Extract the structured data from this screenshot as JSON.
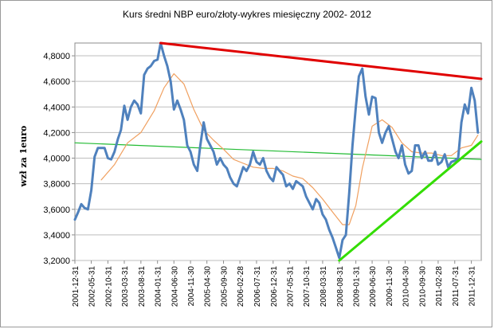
{
  "chart_data": {
    "type": "line",
    "title": "Kurs średni NBP euro/złoty-wykres  miesięczny 2002- 2012",
    "ylabel": "wzł za 1euro",
    "ylim": [
      3.2,
      4.9
    ],
    "y_ticks": [
      "3,2000",
      "3,4000",
      "3,6000",
      "3,8000",
      "4,0000",
      "4,2000",
      "4,4000",
      "4,6000",
      "4,8000"
    ],
    "y_tick_values": [
      3.2,
      3.4,
      3.6,
      3.8,
      4.0,
      4.2,
      4.4,
      4.6,
      4.8
    ],
    "x_range": [
      "2001-12-31",
      "2012-03-31"
    ],
    "x_ticks": [
      "2001-12-31",
      "2002-05-31",
      "2002-10-31",
      "2003-03-31",
      "2003-08-31",
      "2004-01-31",
      "2004-06-30",
      "2004-11-30",
      "2005-04-30",
      "2005-09-30",
      "2006-02-28",
      "2006-07-31",
      "2006-12-31",
      "2007-05-31",
      "2007-10-31",
      "2008-03-31",
      "2008-08-31",
      "2009-01-31",
      "2009-06-30",
      "2009-11-30",
      "2010-04-30",
      "2010-09-30",
      "2011-02-28",
      "2011-07-31",
      "2011-12-31"
    ],
    "grid": true,
    "colors": {
      "rate": "#4f81bd",
      "moving_average": "#f0a060",
      "resistance": "#e00000",
      "support": "#33dd00",
      "long_trend": "#22bb33",
      "grid": "#bdbdbd"
    },
    "series": [
      {
        "type": "line",
        "x": [
          "2001-12-31",
          "2002-01-31",
          "2002-02-28",
          "2002-03-31",
          "2002-04-30",
          "2002-05-31",
          "2002-06-30",
          "2002-07-31",
          "2002-08-31",
          "2002-09-30",
          "2002-10-31",
          "2002-11-30",
          "2002-12-31",
          "2003-01-31",
          "2003-02-28",
          "2003-03-31",
          "2003-04-30",
          "2003-05-31",
          "2003-06-30",
          "2003-07-31",
          "2003-08-31",
          "2003-09-30",
          "2003-10-31",
          "2003-11-30",
          "2003-12-31",
          "2004-01-31",
          "2004-02-29",
          "2004-03-31",
          "2004-04-30",
          "2004-05-31",
          "2004-06-30",
          "2004-07-31",
          "2004-08-31",
          "2004-09-30",
          "2004-10-31",
          "2004-11-30",
          "2004-12-31",
          "2005-01-31",
          "2005-02-28",
          "2005-03-31",
          "2005-04-30",
          "2005-05-31",
          "2005-06-30",
          "2005-07-31",
          "2005-08-31",
          "2005-09-30",
          "2005-10-31",
          "2005-11-30",
          "2005-12-31",
          "2006-01-31",
          "2006-02-28",
          "2006-03-31",
          "2006-04-30",
          "2006-05-31",
          "2006-06-30",
          "2006-07-31",
          "2006-08-31",
          "2006-09-30",
          "2006-10-31",
          "2006-11-30",
          "2006-12-31",
          "2007-01-31",
          "2007-02-28",
          "2007-03-31",
          "2007-04-30",
          "2007-05-31",
          "2007-06-30",
          "2007-07-31",
          "2007-08-31",
          "2007-09-30",
          "2007-10-31",
          "2007-11-30",
          "2007-12-31",
          "2008-01-31",
          "2008-02-29",
          "2008-03-31",
          "2008-04-30",
          "2008-05-31",
          "2008-06-30",
          "2008-07-31",
          "2008-08-31",
          "2008-09-30",
          "2008-10-31",
          "2008-11-30",
          "2008-12-31",
          "2009-01-31",
          "2009-02-28",
          "2009-03-31",
          "2009-04-30",
          "2009-05-31",
          "2009-06-30",
          "2009-07-31",
          "2009-08-31",
          "2009-09-30",
          "2009-10-31",
          "2009-11-30",
          "2009-12-31",
          "2010-01-31",
          "2010-02-28",
          "2010-03-31",
          "2010-04-30",
          "2010-05-31",
          "2010-06-30",
          "2010-07-31",
          "2010-08-31",
          "2010-09-30",
          "2010-10-31",
          "2010-11-30",
          "2010-12-31",
          "2011-01-31",
          "2011-02-28",
          "2011-03-31",
          "2011-04-30",
          "2011-05-31",
          "2011-06-30",
          "2011-07-31",
          "2011-08-31",
          "2011-09-30",
          "2011-10-31",
          "2011-11-30",
          "2011-12-31",
          "2012-01-31",
          "2012-02-29"
        ],
        "y": [
          3.52,
          3.58,
          3.64,
          3.61,
          3.6,
          3.75,
          4.01,
          4.08,
          4.08,
          4.08,
          4.0,
          3.99,
          4.05,
          4.15,
          4.22,
          4.41,
          4.3,
          4.4,
          4.45,
          4.42,
          4.35,
          4.65,
          4.7,
          4.72,
          4.76,
          4.77,
          4.9,
          4.8,
          4.72,
          4.6,
          4.38,
          4.45,
          4.38,
          4.3,
          4.1,
          4.05,
          3.95,
          3.9,
          4.1,
          4.28,
          4.15,
          4.1,
          4.05,
          3.95,
          4.0,
          3.95,
          3.92,
          3.85,
          3.8,
          3.78,
          3.85,
          3.93,
          3.9,
          3.95,
          4.05,
          3.97,
          3.95,
          4.0,
          3.9,
          3.85,
          3.82,
          3.93,
          3.9,
          3.87,
          3.78,
          3.8,
          3.76,
          3.82,
          3.8,
          3.78,
          3.7,
          3.65,
          3.6,
          3.68,
          3.65,
          3.56,
          3.52,
          3.44,
          3.38,
          3.3,
          3.22,
          3.36,
          3.4,
          3.72,
          4.1,
          4.4,
          4.64,
          4.7,
          4.48,
          4.34,
          4.48,
          4.47,
          4.2,
          4.12,
          4.2,
          4.25,
          4.15,
          4.05,
          4.0,
          4.1,
          3.95,
          3.88,
          3.9,
          4.1,
          4.1,
          4.0,
          4.05,
          3.98,
          3.98,
          4.05,
          3.95,
          3.97,
          4.03,
          3.93,
          3.97,
          3.98,
          4.0,
          4.28,
          4.42,
          4.35,
          4.55,
          4.45,
          4.2
        ]
      },
      {
        "type": "line",
        "x": [
          "2002-08-31",
          "2002-12-31",
          "2003-04-30",
          "2003-08-31",
          "2003-12-31",
          "2004-03-31",
          "2004-06-30",
          "2004-09-30",
          "2004-12-31",
          "2005-03-31",
          "2005-06-30",
          "2005-09-30",
          "2005-12-31",
          "2006-03-31",
          "2006-06-30",
          "2006-09-30",
          "2006-12-31",
          "2007-03-31",
          "2007-06-30",
          "2007-09-30",
          "2007-12-31",
          "2008-03-31",
          "2008-06-30",
          "2008-09-30",
          "2008-11-30",
          "2009-01-31",
          "2009-03-31",
          "2009-06-30",
          "2009-09-30",
          "2009-12-31",
          "2010-03-31",
          "2010-06-30",
          "2010-09-30",
          "2010-12-31",
          "2011-03-31",
          "2011-06-30",
          "2011-09-30",
          "2011-12-31",
          "2012-02-29"
        ],
        "y": [
          3.83,
          3.95,
          4.12,
          4.2,
          4.37,
          4.55,
          4.66,
          4.58,
          4.38,
          4.22,
          4.14,
          4.07,
          3.99,
          3.96,
          3.93,
          3.92,
          3.92,
          3.9,
          3.86,
          3.84,
          3.77,
          3.68,
          3.58,
          3.48,
          3.48,
          3.63,
          3.92,
          4.25,
          4.3,
          4.24,
          4.12,
          4.05,
          4.04,
          4.04,
          4.02,
          4.02,
          4.08,
          4.1,
          4.18
        ]
      },
      {
        "type": "line",
        "x": [
          "2004-02-29",
          "2012-03-31"
        ],
        "y": [
          4.9,
          4.62
        ]
      },
      {
        "type": "line",
        "x": [
          "2008-08-31",
          "2012-03-31"
        ],
        "y": [
          3.2,
          4.13
        ]
      },
      {
        "type": "line",
        "x": [
          "2001-12-31",
          "2012-03-31"
        ],
        "y": [
          4.12,
          3.99
        ]
      }
    ]
  }
}
